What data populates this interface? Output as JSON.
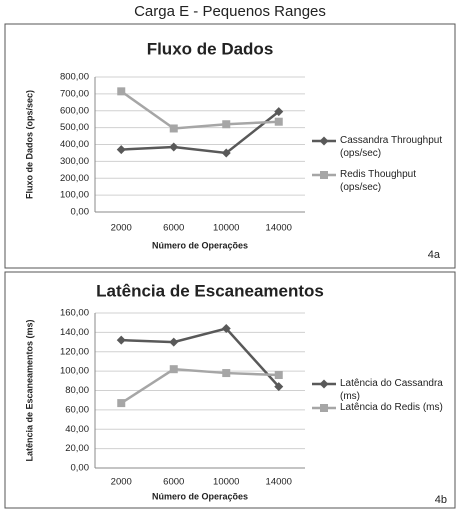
{
  "title": "Carga E - Pequenos Ranges",
  "chart_data": [
    {
      "type": "line",
      "title": "Fluxo de Dados",
      "panel_label": "4a",
      "x_label": "Número de Operações",
      "y_label": "Fluxo de Dados (ops/sec)",
      "categories": [
        "2000",
        "6000",
        "10000",
        "14000"
      ],
      "series": [
        {
          "name": "Cassandra Throughput (ops/sec)",
          "color": "#595959",
          "marker": "diamond",
          "values": [
            370,
            385,
            350,
            595
          ]
        },
        {
          "name": "Redis Thoughput (ops/sec)",
          "color": "#a6a6a6",
          "marker": "square",
          "values": [
            715,
            495,
            520,
            535
          ]
        }
      ],
      "ylim": [
        0,
        800
      ],
      "yticks": [
        {
          "value": 0,
          "label": "0,00"
        },
        {
          "value": 100,
          "label": "100,00"
        },
        {
          "value": 200,
          "label": "200,00"
        },
        {
          "value": 300,
          "label": "300,00"
        },
        {
          "value": 400,
          "label": "400,00"
        },
        {
          "value": 500,
          "label": "500,00"
        },
        {
          "value": 600,
          "label": "600,00"
        },
        {
          "value": 700,
          "label": "700,00"
        },
        {
          "value": 800,
          "label": "800,00"
        }
      ],
      "grid": true,
      "legend": "right"
    },
    {
      "type": "line",
      "title": "Latência de Escaneamentos",
      "panel_label": "4b",
      "x_label": "Número de Operações",
      "y_label": "Latência de Escaneamentos (ms)",
      "categories": [
        "2000",
        "6000",
        "10000",
        "14000"
      ],
      "series": [
        {
          "name": "Latência do Cassandra (ms)",
          "color": "#595959",
          "marker": "diamond",
          "values": [
            132,
            130,
            144,
            84
          ]
        },
        {
          "name": "Latência do Redis (ms)",
          "color": "#a6a6a6",
          "marker": "square",
          "values": [
            67,
            102,
            98,
            96
          ]
        }
      ],
      "ylim": [
        0,
        160
      ],
      "yticks": [
        {
          "value": 0,
          "label": "0,00"
        },
        {
          "value": 20,
          "label": "20,00"
        },
        {
          "value": 40,
          "label": "40,00"
        },
        {
          "value": 60,
          "label": "60,00"
        },
        {
          "value": 80,
          "label": "80,00"
        },
        {
          "value": 100,
          "label": "100,00"
        },
        {
          "value": 120,
          "label": "120,00"
        },
        {
          "value": 140,
          "label": "140,00"
        },
        {
          "value": 160,
          "label": "160,00"
        }
      ],
      "grid": true,
      "legend": "right"
    }
  ]
}
